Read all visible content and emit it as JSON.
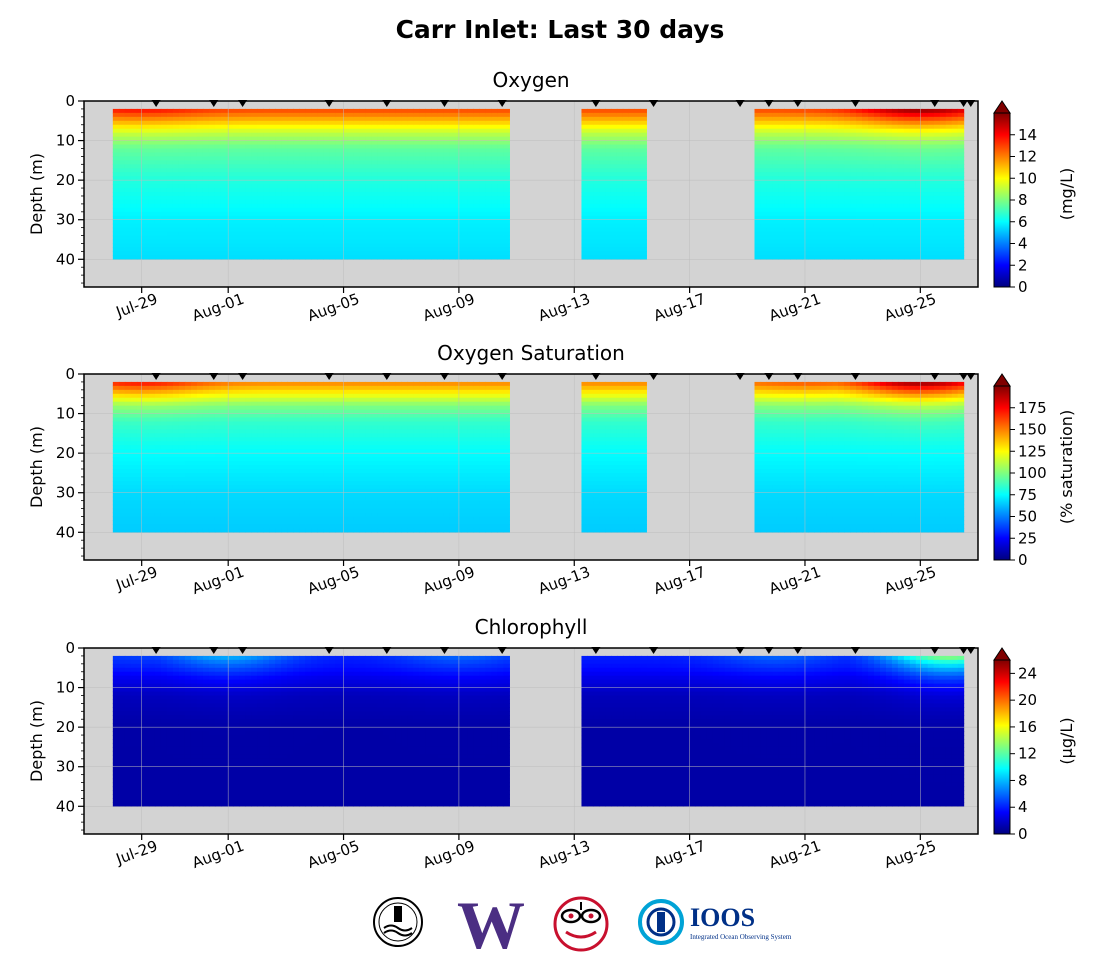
{
  "figure": {
    "title": "Carr Inlet: Last 30 days",
    "colors": {
      "no_data": "#d3d3d3",
      "grid": "#bdbdbd",
      "gap_fill": "#d3d3d3"
    }
  },
  "logos": [
    {
      "name": "round-seal-logo",
      "colors": [
        "#000000",
        "#ffffff"
      ]
    },
    {
      "name": "uw-w-logo",
      "text": "W",
      "colors": [
        "#4b2e83"
      ]
    },
    {
      "name": "native-art-logo",
      "colors": [
        "#c8102e",
        "#000000"
      ]
    },
    {
      "name": "ioos-logo",
      "text": "IOOS",
      "subtitle": "Integrated Ocean Observing System",
      "colors": [
        "#003087",
        "#00a3d6"
      ]
    }
  ],
  "chart_data": [
    {
      "type": "heatmap",
      "title": "Oxygen",
      "ylabel": "Depth (m)",
      "ylim": [
        47,
        0
      ],
      "yticks": [
        0,
        10,
        20,
        30,
        40
      ],
      "ytick_labels": [
        "0",
        "10",
        "20",
        "30",
        "40"
      ],
      "xlim": [
        "2025-07-27",
        "2025-08-27"
      ],
      "xticks": [
        "2025-07-29",
        "2025-08-01",
        "2025-08-05",
        "2025-08-09",
        "2025-08-13",
        "2025-08-17",
        "2025-08-21",
        "2025-08-25"
      ],
      "xtick_labels": [
        "Jul-29",
        "Aug-01",
        "Aug-05",
        "Aug-09",
        "Aug-13",
        "Aug-17",
        "Aug-21",
        "Aug-25"
      ],
      "grid": true,
      "colorbar": {
        "label": "(mg/L)",
        "range": [
          0,
          16
        ],
        "ticks": [
          0,
          2,
          4,
          6,
          8,
          10,
          12,
          14
        ],
        "tick_labels": [
          "0",
          "2",
          "4",
          "6",
          "8",
          "10",
          "12",
          "14"
        ],
        "extend": "max"
      },
      "cast_markers": [
        "2025-07-29 12:00",
        "2025-07-31 12:00",
        "2025-08-01 12:00",
        "2025-08-04 12:00",
        "2025-08-06 12:00",
        "2025-08-08 12:00",
        "2025-08-10 12:00",
        "2025-08-13 18:00",
        "2025-08-15 18:00",
        "2025-08-18 18:00",
        "2025-08-19 18:00",
        "2025-08-20 18:00",
        "2025-08-22 18:00",
        "2025-08-25 12:00",
        "2025-08-26 12:00",
        "2025-08-26 18:00"
      ],
      "segments": [
        {
          "start": "2025-07-28",
          "end": "2025-08-10 18:00",
          "top": 2,
          "bottom": 40
        },
        {
          "start": "2025-08-13 06:00",
          "end": "2025-08-15 12:00",
          "top": 2,
          "bottom": 40
        },
        {
          "start": "2025-08-19 06:00",
          "end": "2025-08-26 12:00",
          "top": 2,
          "bottom": 40
        }
      ],
      "depth_profile": [
        {
          "depth": 2,
          "value": 13
        },
        {
          "depth": 5,
          "value": 11
        },
        {
          "depth": 8,
          "value": 9
        },
        {
          "depth": 12,
          "value": 7.5
        },
        {
          "depth": 20,
          "value": 6.5
        },
        {
          "depth": 30,
          "value": 5.8
        },
        {
          "depth": 40,
          "value": 5.5
        }
      ],
      "surface_peaks": [
        {
          "date": "2025-07-29",
          "value": 14
        },
        {
          "date": "2025-08-04",
          "value": 13
        },
        {
          "date": "2025-08-13",
          "value": 10
        },
        {
          "date": "2025-08-21",
          "value": 13
        },
        {
          "date": "2025-08-25",
          "value": 16
        }
      ]
    },
    {
      "type": "heatmap",
      "title": "Oxygen Saturation",
      "ylabel": "Depth (m)",
      "ylim": [
        47,
        0
      ],
      "yticks": [
        0,
        10,
        20,
        30,
        40
      ],
      "ytick_labels": [
        "0",
        "10",
        "20",
        "30",
        "40"
      ],
      "xlim": [
        "2025-07-27",
        "2025-08-27"
      ],
      "xticks": [
        "2025-07-29",
        "2025-08-01",
        "2025-08-05",
        "2025-08-09",
        "2025-08-13",
        "2025-08-17",
        "2025-08-21",
        "2025-08-25"
      ],
      "xtick_labels": [
        "Jul-29",
        "Aug-01",
        "Aug-05",
        "Aug-09",
        "Aug-13",
        "Aug-17",
        "Aug-21",
        "Aug-25"
      ],
      "grid": true,
      "colorbar": {
        "label": "(% saturation)",
        "range": [
          0,
          200
        ],
        "ticks": [
          0,
          25,
          50,
          75,
          100,
          125,
          150,
          175
        ],
        "tick_labels": [
          "0",
          "25",
          "50",
          "75",
          "100",
          "125",
          "150",
          "175"
        ],
        "extend": "max"
      },
      "cast_markers": [
        "2025-07-29 12:00",
        "2025-07-31 12:00",
        "2025-08-01 12:00",
        "2025-08-04 12:00",
        "2025-08-06 12:00",
        "2025-08-08 12:00",
        "2025-08-10 12:00",
        "2025-08-13 18:00",
        "2025-08-15 18:00",
        "2025-08-18 18:00",
        "2025-08-19 18:00",
        "2025-08-20 18:00",
        "2025-08-22 18:00",
        "2025-08-25 12:00",
        "2025-08-26 12:00",
        "2025-08-26 18:00"
      ],
      "segments": [
        {
          "start": "2025-07-28",
          "end": "2025-08-10 18:00",
          "top": 2,
          "bottom": 40
        },
        {
          "start": "2025-08-13 06:00",
          "end": "2025-08-15 12:00",
          "top": 2,
          "bottom": 40
        },
        {
          "start": "2025-08-19 06:00",
          "end": "2025-08-26 12:00",
          "top": 2,
          "bottom": 40
        }
      ],
      "depth_profile": [
        {
          "depth": 2,
          "value": 150
        },
        {
          "depth": 5,
          "value": 125
        },
        {
          "depth": 8,
          "value": 100
        },
        {
          "depth": 12,
          "value": 85
        },
        {
          "depth": 20,
          "value": 75
        },
        {
          "depth": 30,
          "value": 68
        },
        {
          "depth": 40,
          "value": 65
        }
      ],
      "surface_peaks": [
        {
          "date": "2025-07-29",
          "value": 175
        },
        {
          "date": "2025-08-04",
          "value": 150
        },
        {
          "date": "2025-08-13",
          "value": 95
        },
        {
          "date": "2025-08-21",
          "value": 160
        },
        {
          "date": "2025-08-25",
          "value": 200
        }
      ]
    },
    {
      "type": "heatmap",
      "title": "Chlorophyll",
      "ylabel": "Depth (m)",
      "ylim": [
        47,
        0
      ],
      "yticks": [
        0,
        10,
        20,
        30,
        40
      ],
      "ytick_labels": [
        "0",
        "10",
        "20",
        "30",
        "40"
      ],
      "xlim": [
        "2025-07-27",
        "2025-08-27"
      ],
      "xticks": [
        "2025-07-29",
        "2025-08-01",
        "2025-08-05",
        "2025-08-09",
        "2025-08-13",
        "2025-08-17",
        "2025-08-21",
        "2025-08-25"
      ],
      "xtick_labels": [
        "Jul-29",
        "Aug-01",
        "Aug-05",
        "Aug-09",
        "Aug-13",
        "Aug-17",
        "Aug-21",
        "Aug-25"
      ],
      "grid": true,
      "colorbar": {
        "label": "(μg/L)",
        "range": [
          0,
          26
        ],
        "ticks": [
          0,
          4,
          8,
          12,
          16,
          20,
          24
        ],
        "tick_labels": [
          "0",
          "4",
          "8",
          "12",
          "16",
          "20",
          "24"
        ],
        "extend": "max"
      },
      "cast_markers": [
        "2025-07-29 12:00",
        "2025-07-31 12:00",
        "2025-08-01 12:00",
        "2025-08-04 12:00",
        "2025-08-06 12:00",
        "2025-08-08 12:00",
        "2025-08-10 12:00",
        "2025-08-13 18:00",
        "2025-08-15 18:00",
        "2025-08-18 18:00",
        "2025-08-19 18:00",
        "2025-08-20 18:00",
        "2025-08-22 18:00",
        "2025-08-25 12:00",
        "2025-08-26 12:00",
        "2025-08-26 18:00"
      ],
      "segments": [
        {
          "start": "2025-07-28",
          "end": "2025-08-10 18:00",
          "top": 2,
          "bottom": 40
        },
        {
          "start": "2025-08-13 06:00",
          "end": "2025-08-26 12:00",
          "top": 2,
          "bottom": 40
        }
      ],
      "depth_profile": [
        {
          "depth": 2,
          "value": 4
        },
        {
          "depth": 5,
          "value": 3.5
        },
        {
          "depth": 8,
          "value": 2.5
        },
        {
          "depth": 12,
          "value": 1.5
        },
        {
          "depth": 20,
          "value": 1
        },
        {
          "depth": 30,
          "value": 1
        },
        {
          "depth": 40,
          "value": 1
        }
      ],
      "surface_peaks": [
        {
          "date": "2025-07-29",
          "value": 5
        },
        {
          "date": "2025-08-01",
          "value": 8
        },
        {
          "date": "2025-08-09",
          "value": 6
        },
        {
          "date": "2025-08-20",
          "value": 6
        },
        {
          "date": "2025-08-26",
          "value": 14
        }
      ]
    }
  ]
}
